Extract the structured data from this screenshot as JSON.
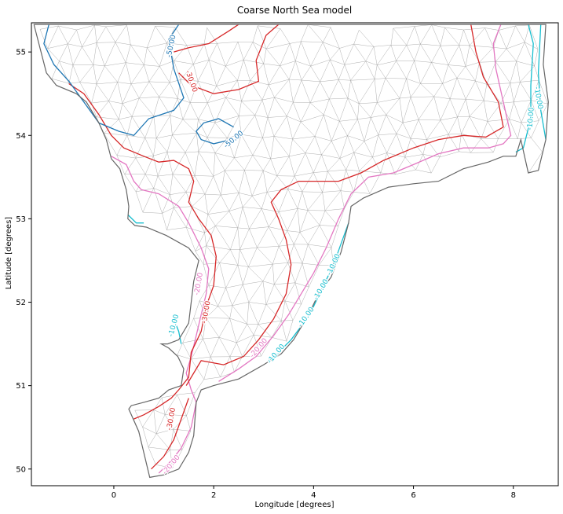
{
  "chart_data": {
    "type": "map",
    "title": "Coarse North Sea model",
    "xlabel": "Longitude [degrees]",
    "ylabel": "Latitude [degrees]",
    "xlim": [
      -1.65,
      8.9
    ],
    "ylim": [
      49.8,
      55.35
    ],
    "xticks": [
      0,
      2,
      4,
      6,
      8
    ],
    "yticks": [
      50,
      51,
      52,
      53,
      54,
      55
    ],
    "grid": false,
    "coastline_color": "#666666",
    "mesh_color": "#9a9a9a",
    "coastline": [
      [
        -1.6,
        55.33
      ],
      [
        -1.5,
        55.1
      ],
      [
        -1.35,
        54.75
      ],
      [
        -1.15,
        54.6
      ],
      [
        -0.75,
        54.5
      ],
      [
        -0.55,
        54.4
      ],
      [
        -0.3,
        54.15
      ],
      [
        -0.15,
        53.95
      ],
      [
        -0.05,
        53.72
      ],
      [
        0.12,
        53.6
      ],
      [
        0.25,
        53.35
      ],
      [
        0.3,
        53.15
      ],
      [
        0.28,
        53.0
      ],
      [
        0.42,
        52.92
      ],
      [
        0.65,
        52.9
      ],
      [
        1.05,
        52.8
      ],
      [
        1.5,
        52.65
      ],
      [
        1.7,
        52.5
      ],
      [
        1.6,
        52.25
      ],
      [
        1.55,
        52.0
      ],
      [
        1.5,
        51.75
      ],
      [
        1.3,
        51.55
      ],
      [
        1.08,
        51.5
      ],
      [
        0.95,
        51.5
      ],
      [
        1.1,
        51.45
      ],
      [
        1.28,
        51.35
      ],
      [
        1.4,
        51.2
      ],
      [
        1.35,
        51.0
      ],
      [
        1.1,
        50.95
      ],
      [
        0.9,
        50.85
      ],
      [
        0.6,
        50.8
      ],
      [
        0.35,
        50.76
      ],
      [
        0.3,
        50.72
      ],
      [
        0.5,
        50.45
      ],
      [
        0.72,
        49.9
      ],
      [
        1.0,
        49.93
      ],
      [
        1.3,
        50.0
      ],
      [
        1.5,
        50.2
      ],
      [
        1.6,
        50.4
      ],
      [
        1.65,
        50.8
      ],
      [
        1.75,
        50.95
      ],
      [
        2.0,
        51.0
      ],
      [
        2.5,
        51.08
      ],
      [
        3.0,
        51.25
      ],
      [
        3.35,
        51.38
      ],
      [
        3.6,
        51.55
      ],
      [
        3.9,
        51.85
      ],
      [
        4.1,
        52.1
      ],
      [
        4.35,
        52.3
      ],
      [
        4.55,
        52.6
      ],
      [
        4.7,
        52.95
      ],
      [
        4.75,
        53.15
      ],
      [
        5.0,
        53.25
      ],
      [
        5.5,
        53.38
      ],
      [
        6.0,
        53.42
      ],
      [
        6.5,
        53.45
      ],
      [
        7.0,
        53.6
      ],
      [
        7.5,
        53.68
      ],
      [
        7.8,
        53.75
      ],
      [
        8.05,
        53.75
      ],
      [
        8.15,
        53.95
      ],
      [
        8.3,
        53.55
      ],
      [
        8.5,
        53.58
      ],
      [
        8.65,
        53.95
      ],
      [
        8.7,
        54.4
      ],
      [
        8.6,
        54.85
      ],
      [
        8.65,
        55.33
      ],
      [
        -1.6,
        55.33
      ]
    ],
    "contours": [
      {
        "level": -10,
        "color": "#17becf",
        "label": "-10.00",
        "paths": [
          [
            [
              8.65,
              53.95
            ],
            [
              8.55,
              54.3
            ],
            [
              8.5,
              54.75
            ],
            [
              8.55,
              55.33
            ]
          ],
          [
            [
              8.05,
              53.8
            ],
            [
              8.2,
              53.85
            ],
            [
              8.35,
              54.2
            ],
            [
              8.35,
              54.6
            ],
            [
              8.4,
              55.1
            ],
            [
              8.3,
              55.33
            ]
          ],
          [
            [
              4.7,
              52.95
            ],
            [
              4.55,
              52.7
            ],
            [
              4.4,
              52.45
            ],
            [
              4.2,
              52.2
            ],
            [
              4.0,
              51.95
            ],
            [
              3.8,
              51.75
            ],
            [
              3.55,
              51.55
            ],
            [
              3.3,
              51.4
            ],
            [
              3.1,
              51.3
            ]
          ],
          [
            [
              0.28,
              53.05
            ],
            [
              0.45,
              52.95
            ],
            [
              0.6,
              52.95
            ]
          ],
          [
            [
              1.2,
              51.8
            ],
            [
              1.3,
              51.65
            ],
            [
              1.35,
              51.5
            ]
          ]
        ]
      },
      {
        "level": -20,
        "color": "#e377c2",
        "label": "-20.00",
        "paths": [
          [
            [
              -0.05,
              53.75
            ],
            [
              0.25,
              53.65
            ],
            [
              0.4,
              53.45
            ],
            [
              0.55,
              53.35
            ],
            [
              0.9,
              53.3
            ],
            [
              1.3,
              53.15
            ],
            [
              1.5,
              52.95
            ],
            [
              1.75,
              52.65
            ],
            [
              1.9,
              52.4
            ],
            [
              1.85,
              52.1
            ],
            [
              1.75,
              51.85
            ],
            [
              1.65,
              51.6
            ],
            [
              1.55,
              51.35
            ],
            [
              1.45,
              51.15
            ],
            [
              1.55,
              50.95
            ],
            [
              1.65,
              50.8
            ],
            [
              1.55,
              50.5
            ],
            [
              1.35,
              50.25
            ],
            [
              1.15,
              50.1
            ],
            [
              0.9,
              49.95
            ]
          ],
          [
            [
              2.1,
              51.05
            ],
            [
              2.5,
              51.2
            ],
            [
              2.85,
              51.35
            ],
            [
              3.2,
              51.6
            ],
            [
              3.5,
              51.85
            ],
            [
              3.75,
              52.1
            ],
            [
              4.0,
              52.35
            ],
            [
              4.25,
              52.65
            ],
            [
              4.5,
              53.0
            ],
            [
              4.75,
              53.3
            ],
            [
              5.1,
              53.5
            ],
            [
              5.6,
              53.55
            ],
            [
              6.0,
              53.65
            ],
            [
              6.5,
              53.78
            ],
            [
              7.0,
              53.85
            ],
            [
              7.5,
              53.85
            ],
            [
              7.8,
              53.9
            ],
            [
              7.95,
              54.0
            ],
            [
              7.8,
              54.4
            ],
            [
              7.65,
              54.8
            ],
            [
              7.6,
              55.1
            ],
            [
              7.75,
              55.33
            ]
          ]
        ]
      },
      {
        "level": -30,
        "color": "#d62728",
        "label": "-30.00",
        "paths": [
          [
            [
              -0.9,
              54.62
            ],
            [
              -0.6,
              54.5
            ],
            [
              -0.3,
              54.25
            ],
            [
              -0.05,
              54.0
            ],
            [
              0.2,
              53.85
            ],
            [
              0.6,
              53.75
            ],
            [
              0.9,
              53.68
            ],
            [
              1.2,
              53.7
            ],
            [
              1.5,
              53.6
            ],
            [
              1.6,
              53.45
            ],
            [
              1.5,
              53.2
            ],
            [
              1.7,
              53.0
            ],
            [
              1.95,
              52.8
            ],
            [
              2.05,
              52.55
            ],
            [
              2.0,
              52.2
            ],
            [
              1.85,
              51.95
            ],
            [
              1.75,
              51.65
            ],
            [
              1.55,
              51.4
            ],
            [
              1.5,
              51.1
            ],
            [
              1.3,
              50.95
            ],
            [
              1.15,
              50.85
            ],
            [
              0.9,
              50.75
            ],
            [
              0.6,
              50.65
            ],
            [
              0.4,
              50.6
            ]
          ],
          [
            [
              1.5,
              50.85
            ],
            [
              1.35,
              50.6
            ],
            [
              1.2,
              50.35
            ],
            [
              1.0,
              50.15
            ],
            [
              0.75,
              50.0
            ]
          ],
          [
            [
              1.45,
              51.0
            ],
            [
              1.75,
              51.3
            ],
            [
              2.2,
              51.25
            ],
            [
              2.6,
              51.35
            ],
            [
              2.9,
              51.55
            ],
            [
              3.2,
              51.8
            ],
            [
              3.45,
              52.1
            ],
            [
              3.55,
              52.45
            ],
            [
              3.45,
              52.75
            ],
            [
              3.3,
              53.0
            ],
            [
              3.15,
              53.2
            ],
            [
              3.35,
              53.35
            ],
            [
              3.7,
              53.45
            ],
            [
              4.1,
              53.45
            ],
            [
              4.5,
              53.45
            ],
            [
              4.95,
              53.55
            ],
            [
              5.4,
              53.7
            ],
            [
              6.0,
              53.85
            ],
            [
              6.5,
              53.95
            ],
            [
              7.0,
              54.0
            ],
            [
              7.45,
              53.98
            ],
            [
              7.8,
              54.1
            ],
            [
              7.7,
              54.4
            ],
            [
              7.4,
              54.7
            ],
            [
              7.25,
              55.0
            ],
            [
              7.15,
              55.33
            ]
          ],
          [
            [
              1.2,
              55.0
            ],
            [
              1.5,
              55.05
            ],
            [
              1.9,
              55.1
            ],
            [
              2.3,
              55.25
            ],
            [
              2.5,
              55.33
            ]
          ],
          [
            [
              1.3,
              54.75
            ],
            [
              1.55,
              54.6
            ],
            [
              2.0,
              54.5
            ],
            [
              2.5,
              54.55
            ],
            [
              2.9,
              54.65
            ],
            [
              2.85,
              54.9
            ],
            [
              3.05,
              55.2
            ],
            [
              3.3,
              55.33
            ]
          ]
        ]
      },
      {
        "level": -50,
        "color": "#1f77b4",
        "label": "-50.00",
        "paths": [
          [
            [
              -1.3,
              55.33
            ],
            [
              -1.4,
              55.1
            ],
            [
              -1.2,
              54.85
            ],
            [
              -0.9,
              54.65
            ],
            [
              -0.6,
              54.4
            ],
            [
              -0.3,
              54.15
            ],
            [
              0.1,
              54.05
            ],
            [
              0.4,
              54.0
            ],
            [
              0.7,
              54.2
            ],
            [
              1.2,
              54.3
            ],
            [
              1.4,
              54.45
            ],
            [
              1.2,
              54.8
            ],
            [
              1.1,
              55.15
            ],
            [
              1.3,
              55.33
            ]
          ],
          [
            [
              2.4,
              54.1
            ],
            [
              2.1,
              54.2
            ],
            [
              1.8,
              54.15
            ],
            [
              1.65,
              54.05
            ],
            [
              1.75,
              53.95
            ],
            [
              2.0,
              53.9
            ],
            [
              2.35,
              53.95
            ]
          ]
        ]
      }
    ],
    "contour_labels": [
      {
        "text": "-50.00",
        "x": 1.15,
        "y": 55.07,
        "angle": -78,
        "color": "#1f77b4"
      },
      {
        "text": "-50.00",
        "x": 2.4,
        "y": 53.95,
        "angle": -40,
        "color": "#1f77b4"
      },
      {
        "text": "-30.00",
        "x": 1.55,
        "y": 54.65,
        "angle": 70,
        "color": "#d62728"
      },
      {
        "text": "-30.00",
        "x": 1.85,
        "y": 51.88,
        "angle": -80,
        "color": "#d62728"
      },
      {
        "text": "-30.00",
        "x": 1.15,
        "y": 50.6,
        "angle": -80,
        "color": "#d62728"
      },
      {
        "text": "-20.00",
        "x": 1.7,
        "y": 52.22,
        "angle": -80,
        "color": "#e377c2"
      },
      {
        "text": "-20.00",
        "x": 2.9,
        "y": 51.45,
        "angle": -50,
        "color": "#e377c2"
      },
      {
        "text": "-20.00",
        "x": 1.15,
        "y": 50.05,
        "angle": -50,
        "color": "#e377c2"
      },
      {
        "text": "-10.00",
        "x": 8.5,
        "y": 54.45,
        "angle": 80,
        "color": "#17becf"
      },
      {
        "text": "-10.00",
        "x": 8.35,
        "y": 54.2,
        "angle": -85,
        "color": "#17becf"
      },
      {
        "text": "-10.00",
        "x": 4.4,
        "y": 52.45,
        "angle": -65,
        "color": "#17becf"
      },
      {
        "text": "-10.00",
        "x": 4.15,
        "y": 52.15,
        "angle": -60,
        "color": "#17becf"
      },
      {
        "text": "-10.00",
        "x": 3.85,
        "y": 51.82,
        "angle": -55,
        "color": "#17becf"
      },
      {
        "text": "-10.00",
        "x": 3.25,
        "y": 51.38,
        "angle": -50,
        "color": "#17becf"
      },
      {
        "text": "-10.00",
        "x": 1.2,
        "y": 51.72,
        "angle": -75,
        "color": "#17becf"
      }
    ]
  }
}
